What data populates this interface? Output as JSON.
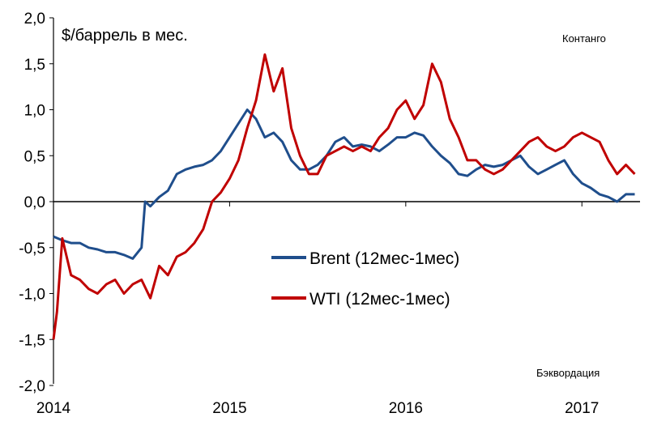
{
  "chart_data": {
    "type": "line",
    "ylabel": "$/баррель в мес.",
    "ylim": [
      -2.0,
      2.0
    ],
    "xlim": [
      2014.0,
      2017.33
    ],
    "y_ticks": [
      "2,0",
      "1,5",
      "1,0",
      "0,5",
      "0,0",
      "-0,5",
      "-1,0",
      "-1,5",
      "-2,0"
    ],
    "x_ticks": [
      "2014",
      "2015",
      "2016",
      "2017"
    ],
    "annotations": {
      "top": "Контанго",
      "bottom": "Бэквордация"
    },
    "grid": false,
    "legend_position": "center-left",
    "series": [
      {
        "name": "Brent (12мес-1мес)",
        "color": "#1f4e8c",
        "x": [
          2014.0,
          2014.05,
          2014.1,
          2014.15,
          2014.2,
          2014.25,
          2014.3,
          2014.35,
          2014.4,
          2014.45,
          2014.5,
          2014.52,
          2014.55,
          2014.6,
          2014.65,
          2014.7,
          2014.75,
          2014.8,
          2014.85,
          2014.9,
          2014.95,
          2015.0,
          2015.05,
          2015.1,
          2015.15,
          2015.2,
          2015.25,
          2015.3,
          2015.35,
          2015.4,
          2015.45,
          2015.5,
          2015.55,
          2015.6,
          2015.65,
          2015.7,
          2015.75,
          2015.8,
          2015.85,
          2015.9,
          2015.95,
          2016.0,
          2016.05,
          2016.1,
          2016.15,
          2016.2,
          2016.25,
          2016.3,
          2016.35,
          2016.4,
          2016.45,
          2016.5,
          2016.55,
          2016.6,
          2016.65,
          2016.7,
          2016.75,
          2016.8,
          2016.85,
          2016.9,
          2016.95,
          2017.0,
          2017.05,
          2017.1,
          2017.15,
          2017.2,
          2017.25,
          2017.3
        ],
        "y": [
          -0.38,
          -0.42,
          -0.45,
          -0.45,
          -0.5,
          -0.52,
          -0.55,
          -0.55,
          -0.58,
          -0.62,
          -0.5,
          0.0,
          -0.05,
          0.05,
          0.12,
          0.3,
          0.35,
          0.38,
          0.4,
          0.45,
          0.55,
          0.7,
          0.85,
          1.0,
          0.9,
          0.7,
          0.75,
          0.65,
          0.45,
          0.35,
          0.35,
          0.4,
          0.5,
          0.65,
          0.7,
          0.6,
          0.62,
          0.6,
          0.55,
          0.62,
          0.7,
          0.7,
          0.75,
          0.72,
          0.6,
          0.5,
          0.42,
          0.3,
          0.28,
          0.35,
          0.4,
          0.38,
          0.4,
          0.45,
          0.5,
          0.38,
          0.3,
          0.35,
          0.4,
          0.45,
          0.3,
          0.2,
          0.15,
          0.08,
          0.05,
          0.0,
          0.08,
          0.08
        ]
      },
      {
        "name": "WTI (12мес-1мес)",
        "color": "#c00000",
        "x": [
          2014.0,
          2014.02,
          2014.05,
          2014.1,
          2014.15,
          2014.2,
          2014.25,
          2014.3,
          2014.35,
          2014.4,
          2014.45,
          2014.5,
          2014.55,
          2014.6,
          2014.65,
          2014.7,
          2014.75,
          2014.8,
          2014.85,
          2014.9,
          2014.95,
          2015.0,
          2015.05,
          2015.1,
          2015.15,
          2015.2,
          2015.25,
          2015.3,
          2015.35,
          2015.4,
          2015.45,
          2015.5,
          2015.55,
          2015.6,
          2015.65,
          2015.7,
          2015.75,
          2015.8,
          2015.85,
          2015.9,
          2015.95,
          2016.0,
          2016.05,
          2016.1,
          2016.15,
          2016.2,
          2016.25,
          2016.3,
          2016.35,
          2016.4,
          2016.45,
          2016.5,
          2016.55,
          2016.6,
          2016.65,
          2016.7,
          2016.75,
          2016.8,
          2016.85,
          2016.9,
          2016.95,
          2017.0,
          2017.05,
          2017.1,
          2017.15,
          2017.2,
          2017.25,
          2017.3
        ],
        "y": [
          -1.5,
          -1.2,
          -0.4,
          -0.8,
          -0.85,
          -0.95,
          -1.0,
          -0.9,
          -0.85,
          -1.0,
          -0.9,
          -0.85,
          -1.05,
          -0.7,
          -0.8,
          -0.6,
          -0.55,
          -0.45,
          -0.3,
          0.0,
          0.1,
          0.25,
          0.45,
          0.8,
          1.1,
          1.6,
          1.2,
          1.45,
          0.8,
          0.5,
          0.3,
          0.3,
          0.5,
          0.55,
          0.6,
          0.55,
          0.6,
          0.55,
          0.7,
          0.8,
          1.0,
          1.1,
          0.9,
          1.05,
          1.5,
          1.3,
          0.9,
          0.7,
          0.45,
          0.45,
          0.35,
          0.3,
          0.35,
          0.45,
          0.55,
          0.65,
          0.7,
          0.6,
          0.55,
          0.6,
          0.7,
          0.75,
          0.7,
          0.65,
          0.45,
          0.3,
          0.4,
          0.3
        ]
      }
    ]
  }
}
